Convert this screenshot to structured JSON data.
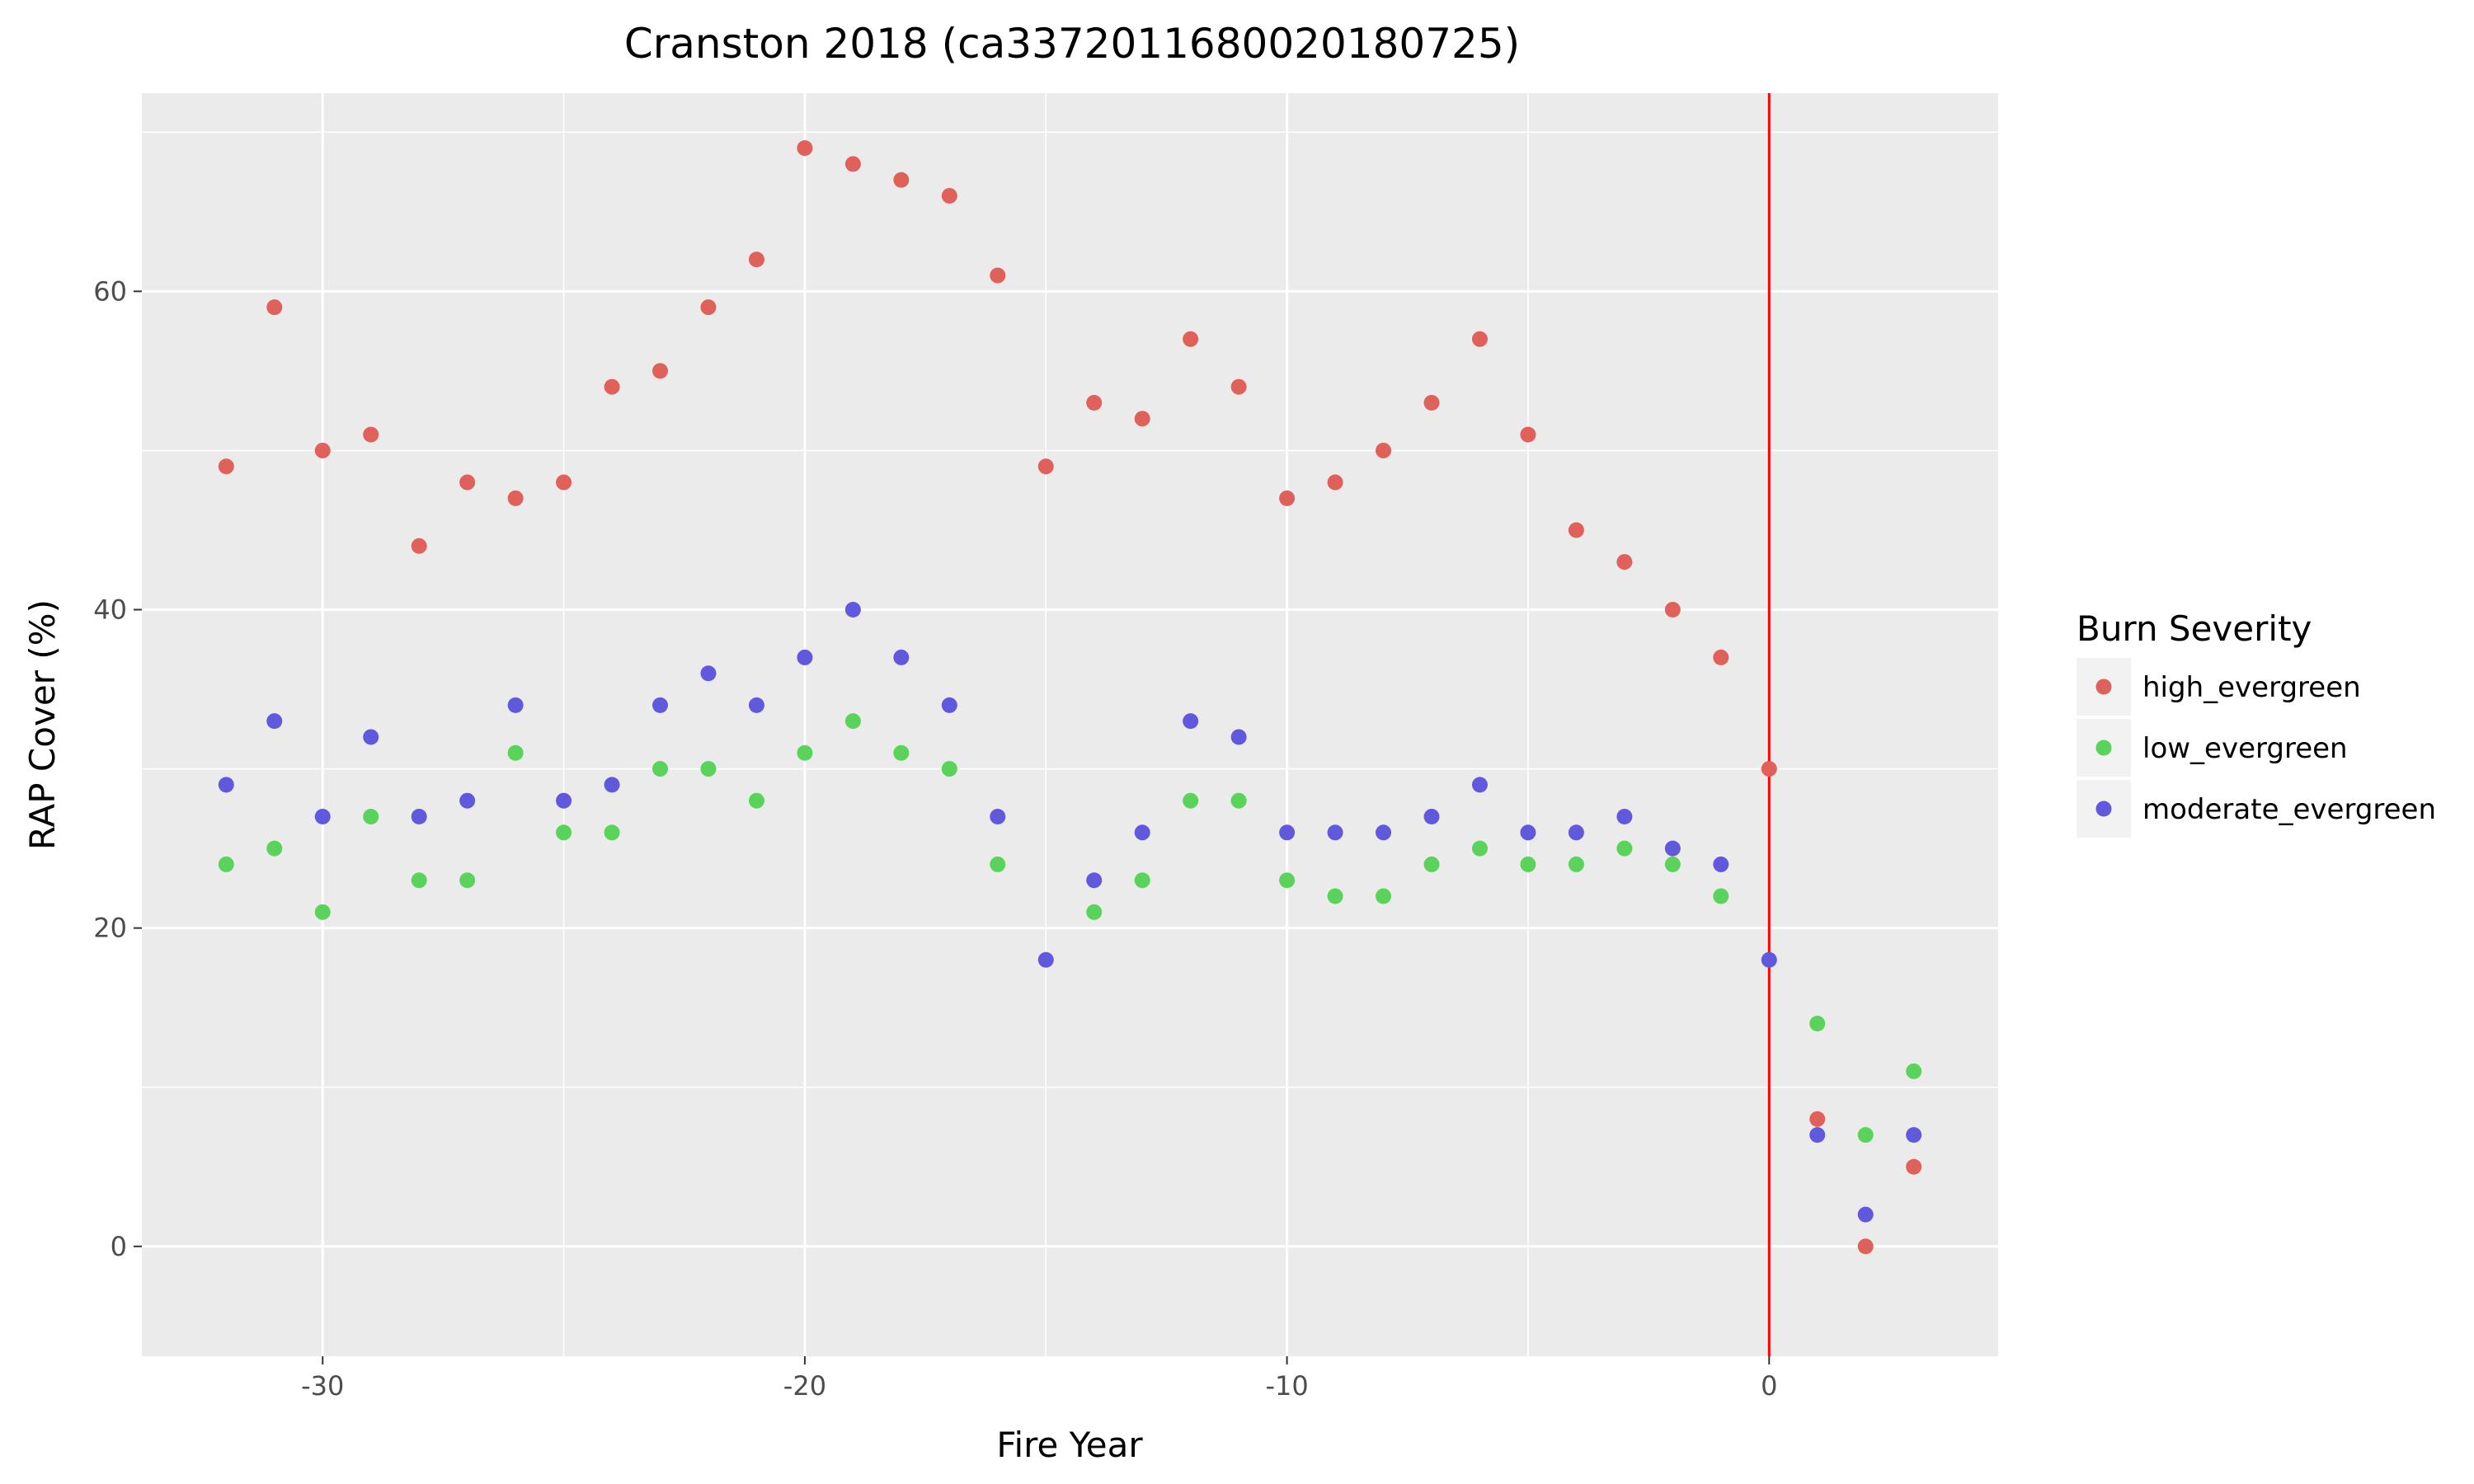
{
  "chart_data": {
    "type": "scatter",
    "title": "Cranston 2018 (ca3372011680020180725)",
    "xlabel": "Fire Year",
    "ylabel": "RAP Cover (%)",
    "xlim": [
      -33.75,
      4.75
    ],
    "ylim": [
      -6.9,
      72.45
    ],
    "x_ticks": [
      -30,
      -20,
      -10,
      0
    ],
    "x_tick_labels": [
      "-30",
      "-20",
      "-10",
      "0"
    ],
    "y_ticks": [
      0,
      20,
      40,
      60
    ],
    "y_tick_labels": [
      "0",
      "20",
      "40",
      "60"
    ],
    "grid": true,
    "vline": {
      "x": 0,
      "color": "#ff0000"
    },
    "legend": {
      "title": "Burn Severity",
      "position": "right"
    },
    "series": [
      {
        "name": "high_evergreen",
        "color": "#e0605a",
        "x": [
          -32,
          -31,
          -30,
          -29,
          -28,
          -27,
          -26,
          -25,
          -24,
          -23,
          -22,
          -21,
          -20,
          -19,
          -18,
          -17,
          -16,
          -15,
          -14,
          -13,
          -12,
          -11,
          -10,
          -9,
          -8,
          -7,
          -6,
          -5,
          -4,
          -3,
          -2,
          -1,
          0,
          1,
          2,
          3
        ],
        "y": [
          49,
          59,
          50,
          51,
          44,
          48,
          47,
          48,
          54,
          55,
          59,
          62,
          69,
          68,
          67,
          66,
          61,
          49,
          53,
          52,
          57,
          54,
          47,
          48,
          50,
          53,
          57,
          51,
          45,
          43,
          40,
          37,
          30,
          8,
          0,
          5
        ]
      },
      {
        "name": "low_evergreen",
        "color": "#5ad35a",
        "x": [
          -32,
          -31,
          -30,
          -29,
          -28,
          -27,
          -26,
          -25,
          -24,
          -23,
          -22,
          -21,
          -20,
          -19,
          -18,
          -17,
          -16,
          -14,
          -13,
          -12,
          -11,
          -10,
          -9,
          -8,
          -7,
          -6,
          -5,
          -4,
          -3,
          -2,
          -1,
          1,
          2,
          3
        ],
        "y": [
          24,
          25,
          21,
          27,
          23,
          23,
          31,
          26,
          26,
          30,
          30,
          28,
          31,
          33,
          31,
          30,
          24,
          21,
          23,
          28,
          28,
          23,
          22,
          22,
          24,
          25,
          24,
          24,
          25,
          24,
          22,
          14,
          7,
          11
        ]
      },
      {
        "name": "moderate_evergreen",
        "color": "#6059de",
        "x": [
          -32,
          -31,
          -30,
          -29,
          -28,
          -27,
          -26,
          -25,
          -24,
          -23,
          -22,
          -21,
          -20,
          -19,
          -18,
          -17,
          -16,
          -15,
          -14,
          -13,
          -12,
          -11,
          -10,
          -9,
          -8,
          -7,
          -6,
          -5,
          -4,
          -3,
          -2,
          -1,
          0,
          1,
          2,
          3
        ],
        "y": [
          29,
          33,
          27,
          32,
          27,
          28,
          34,
          28,
          29,
          34,
          36,
          34,
          37,
          40,
          37,
          34,
          27,
          18,
          23,
          26,
          33,
          32,
          26,
          26,
          26,
          27,
          29,
          26,
          26,
          27,
          25,
          24,
          18,
          7,
          2,
          7
        ]
      }
    ]
  }
}
